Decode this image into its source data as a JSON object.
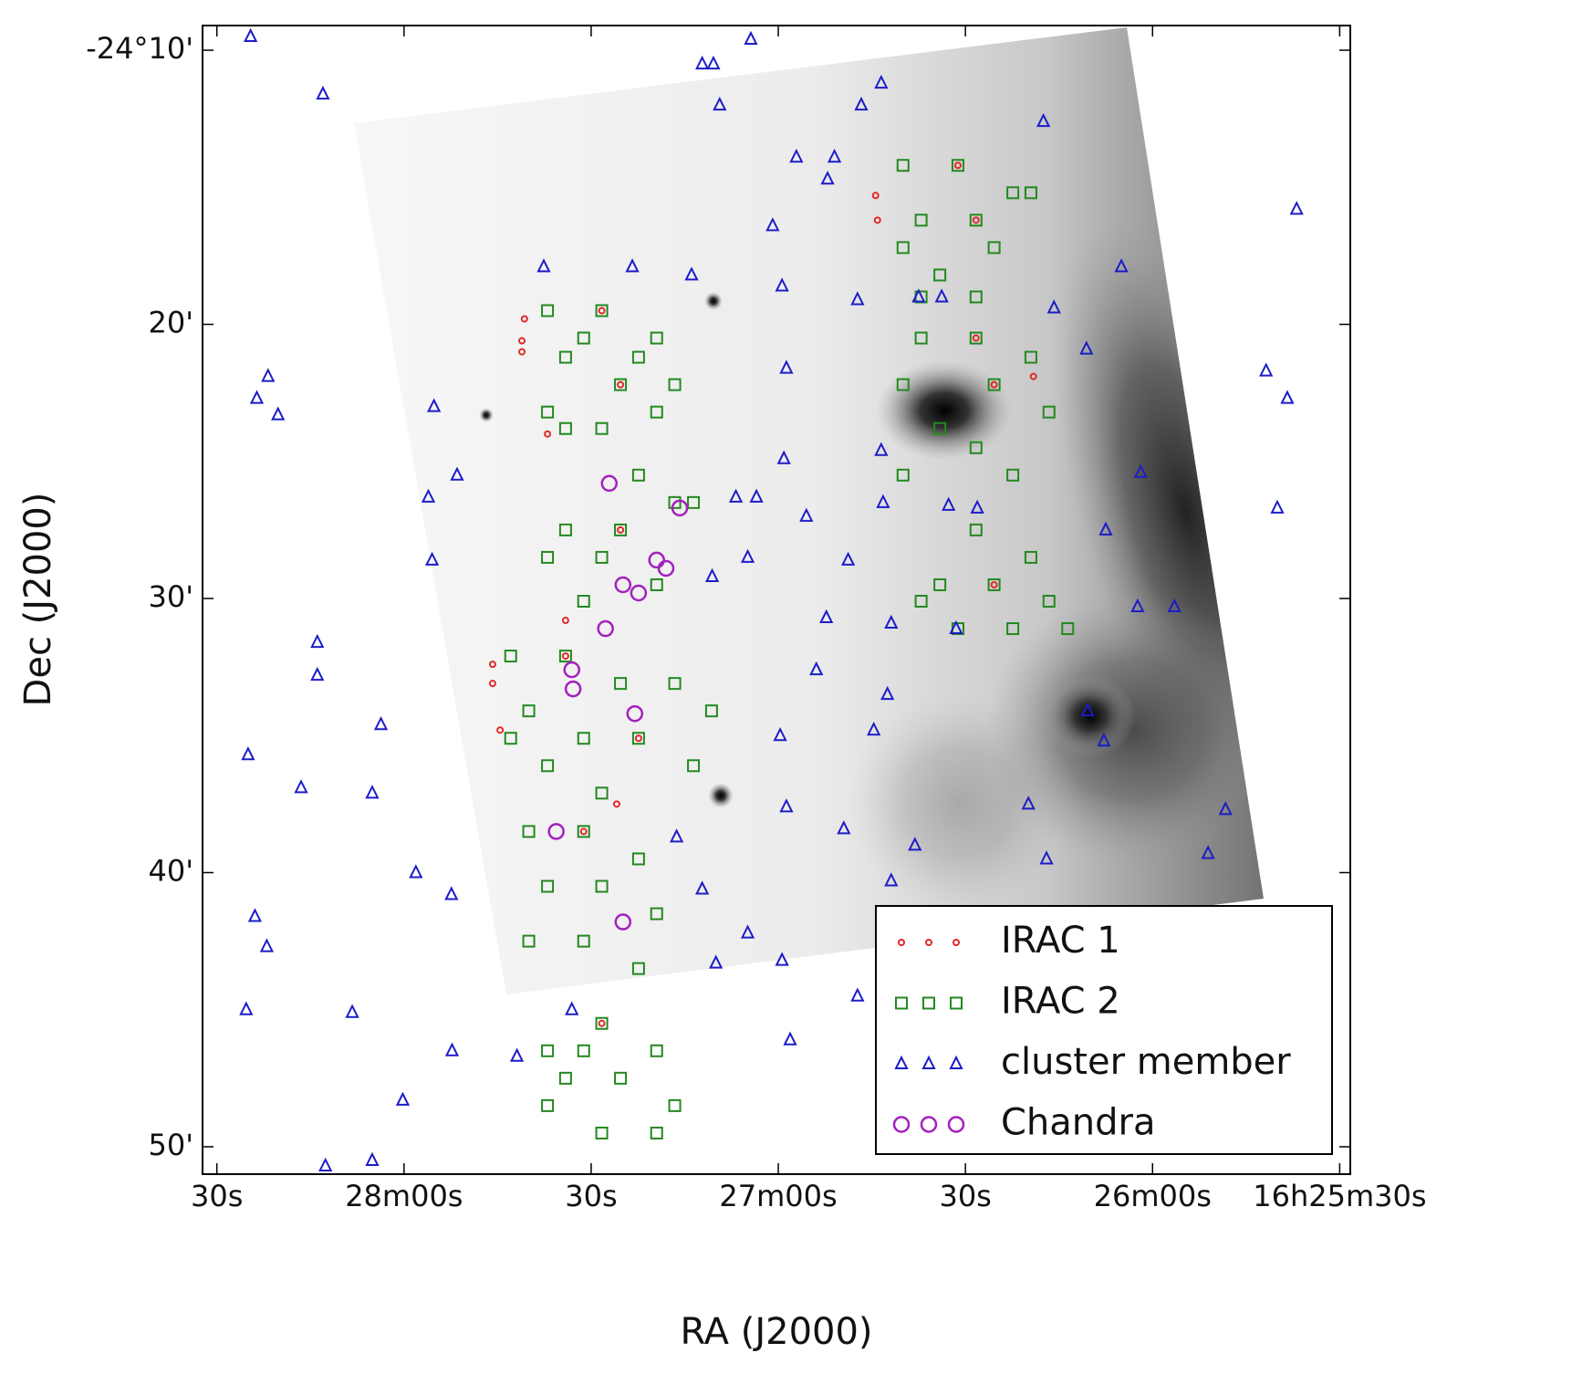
{
  "chart_data": {
    "type": "scatter",
    "xlabel": "RA (J2000)",
    "ylabel": "Dec (J2000)",
    "xlim": [
      1712.3,
      1528.3
    ],
    "ylim": [
      -1491.0,
      -1449.1
    ],
    "xticks": [
      {
        "value": 1710,
        "label": "30s"
      },
      {
        "value": 1680,
        "label": "28m00s"
      },
      {
        "value": 1650,
        "label": "30s"
      },
      {
        "value": 1620,
        "label": "27m00s"
      },
      {
        "value": 1590,
        "label": "30s"
      },
      {
        "value": 1560,
        "label": "26m00s"
      },
      {
        "value": 1530,
        "label": "16h25m30s"
      }
    ],
    "yticks": [
      {
        "value": -1450,
        "label": "-24°10'"
      },
      {
        "value": -1460,
        "label": "20'"
      },
      {
        "value": -1470,
        "label": "30'"
      },
      {
        "value": -1480,
        "label": "40'"
      },
      {
        "value": -1490,
        "label": "50'"
      }
    ],
    "grid": false,
    "legend": "lower right",
    "series": [
      {
        "name": "IRAC 1",
        "color": "#e02828",
        "marker": ".",
        "x": [
          1661.1,
          1661.1,
          1660.7,
          1604.4,
          1604.1,
          1665.8,
          1665.8,
          1664.6,
          1654.1,
          1657.0,
          1579.1,
          1645.9,
          1648.3,
          1645.3,
          1591.2,
          1588.3,
          1588.3,
          1585.4,
          1645.3,
          1585.4,
          1654.1,
          1642.4,
          1651.2,
          1648.3
        ],
        "y": [
          -1460.6,
          -1461.0,
          -1459.8,
          -1455.3,
          -1456.2,
          -1472.4,
          -1473.1,
          -1474.8,
          -1470.8,
          -1464.0,
          -1461.9,
          -1477.5,
          -1459.5,
          -1462.2,
          -1454.2,
          -1456.2,
          -1460.5,
          -1462.2,
          -1467.5,
          -1469.5,
          -1472.1,
          -1475.1,
          -1478.5,
          -1485.5
        ]
      },
      {
        "name": "IRAC 2",
        "color": "#23891f",
        "marker": "s",
        "x": [
          1657.0,
          1648.3,
          1639.5,
          1654.1,
          1645.3,
          1636.6,
          1657.0,
          1648.3,
          1639.5,
          1651.2,
          1642.4,
          1654.1,
          1600.0,
          1591.2,
          1582.4,
          1597.1,
          1588.3,
          1600.0,
          1585.4,
          1594.1,
          1597.1,
          1588.3,
          1579.5,
          1597.1,
          1588.3,
          1579.5,
          1600.0,
          1585.4,
          1576.6,
          1594.1,
          1600.0,
          1588.3,
          1582.4,
          1642.4,
          1636.6,
          1654.1,
          1645.3,
          1657.0,
          1648.3,
          1639.5,
          1651.2,
          1633.6,
          1588.3,
          1579.5,
          1594.1,
          1585.4,
          1576.6,
          1591.2,
          1582.4,
          1573.6,
          1597.1,
          1662.9,
          1654.1,
          1645.3,
          1636.6,
          1630.7,
          1660.0,
          1651.2,
          1642.4,
          1633.6,
          1657.0,
          1648.3,
          1662.9,
          1660.0,
          1651.2,
          1642.4,
          1657.0,
          1648.3,
          1639.5,
          1660.0,
          1651.2,
          1642.4,
          1657.0,
          1648.3,
          1639.5,
          1654.1,
          1645.3,
          1636.6,
          1657.0,
          1648.3,
          1639.5,
          1651.2
        ],
        "y": [
          -1459.5,
          -1459.5,
          -1460.5,
          -1461.2,
          -1462.2,
          -1462.2,
          -1463.2,
          -1463.8,
          -1463.2,
          -1460.5,
          -1461.2,
          -1463.8,
          -1454.2,
          -1454.2,
          -1455.2,
          -1456.2,
          -1456.2,
          -1457.2,
          -1457.2,
          -1458.2,
          -1459.0,
          -1459.0,
          -1455.2,
          -1460.5,
          -1460.5,
          -1461.2,
          -1462.2,
          -1462.2,
          -1463.2,
          -1463.8,
          -1465.5,
          -1464.5,
          -1465.5,
          -1465.5,
          -1466.5,
          -1467.5,
          -1467.5,
          -1468.5,
          -1468.5,
          -1469.5,
          -1470.1,
          -1466.5,
          -1467.5,
          -1468.5,
          -1469.5,
          -1469.5,
          -1470.1,
          -1471.1,
          -1471.1,
          -1471.1,
          -1470.1,
          -1472.1,
          -1472.1,
          -1473.1,
          -1473.1,
          -1474.1,
          -1474.1,
          -1475.1,
          -1475.1,
          -1476.1,
          -1476.1,
          -1477.1,
          -1475.1,
          -1478.5,
          -1478.5,
          -1479.5,
          -1480.5,
          -1480.5,
          -1481.5,
          -1482.5,
          -1482.5,
          -1483.5,
          -1486.5,
          -1485.5,
          -1486.5,
          -1487.5,
          -1487.5,
          -1488.5,
          -1488.5,
          -1489.5,
          -1489.5,
          -1486.5
        ]
      },
      {
        "name": "cluster member",
        "color": "#1c1cc8",
        "marker": "^",
        "x": [
          1704.6,
          1693.0,
          1624.4,
          1632.2,
          1630.4,
          1603.5,
          1606.7,
          1629.4,
          1577.5,
          1617.1,
          1611.0,
          1612.1,
          1620.9,
          1536.9,
          1657.6,
          1643.4,
          1633.9,
          1619.4,
          1607.3,
          1575.8,
          1565.0,
          1701.8,
          1703.6,
          1700.2,
          1675.2,
          1676.1,
          1671.5,
          1675.5,
          1693.9,
          1693.9,
          1705.0,
          1696.5,
          1685.1,
          1683.7,
          1678.1,
          1672.4,
          1703.9,
          1702.0,
          1705.3,
          1688.3,
          1672.3,
          1680.2,
          1692.6,
          1541.8,
          1538.4,
          1540.0,
          1561.9,
          1570.6,
          1548.3,
          1551.1,
          1577.0,
          1579.9,
          1598.1,
          1601.9,
          1609.5,
          1619.4,
          1618.1,
          1607.3,
          1632.2,
          1636.3,
          1624.9,
          1630.0,
          1619.7,
          1618.7,
          1604.7,
          1602.5,
          1613.9,
          1612.3,
          1601.9,
          1608.8,
          1615.5,
          1626.8,
          1623.5,
          1624.9,
          1630.6,
          1619.1,
          1588.1,
          1592.7,
          1603.5,
          1603.2,
          1591.5,
          1567.5,
          1562.4,
          1556.5,
          1567.8,
          1570.4,
          1618.7,
          1597.5,
          1593.8,
          1661.9,
          1653.1,
          1685.1
        ],
        "y": [
          -1449.5,
          -1451.6,
          -1449.6,
          -1450.5,
          -1450.5,
          -1451.2,
          -1452.0,
          -1452.0,
          -1452.6,
          -1453.9,
          -1453.9,
          -1454.7,
          -1456.4,
          -1455.8,
          -1457.9,
          -1457.9,
          -1458.2,
          -1458.6,
          -1459.1,
          -1459.4,
          -1457.9,
          -1461.9,
          -1462.7,
          -1463.3,
          -1463.0,
          -1466.3,
          -1465.5,
          -1468.6,
          -1471.6,
          -1472.8,
          -1475.7,
          -1476.9,
          -1477.1,
          -1474.6,
          -1480.0,
          -1480.8,
          -1481.6,
          -1482.7,
          -1485.0,
          -1485.1,
          -1486.5,
          -1488.3,
          -1490.7,
          -1461.7,
          -1462.7,
          -1466.7,
          -1465.4,
          -1460.9,
          -1477.7,
          -1479.3,
          -1479.5,
          -1477.5,
          -1479.0,
          -1480.3,
          -1478.4,
          -1483.2,
          -1486.1,
          -1484.5,
          -1480.6,
          -1478.7,
          -1482.2,
          -1483.3,
          -1475.0,
          -1477.6,
          -1474.8,
          -1473.5,
          -1472.6,
          -1470.7,
          -1470.9,
          -1468.6,
          -1467.0,
          -1466.3,
          -1466.3,
          -1468.5,
          -1469.2,
          -1464.9,
          -1466.7,
          -1466.6,
          -1464.6,
          -1466.5,
          -1471.1,
          -1467.5,
          -1470.3,
          -1470.3,
          -1475.2,
          -1474.1,
          -1461.6,
          -1459.0,
          -1459.0,
          -1486.7,
          -1485.0,
          -1490.5
        ]
      },
      {
        "name": "Chandra",
        "color": "#a321bd",
        "marker": "o",
        "x": [
          1647.1,
          1635.8,
          1639.5,
          1638.0,
          1644.9,
          1642.4,
          1647.7,
          1653.1,
          1652.9,
          1643.0,
          1655.6,
          1644.9
        ],
        "y": [
          -1465.8,
          -1466.7,
          -1468.6,
          -1468.9,
          -1469.5,
          -1469.8,
          -1471.1,
          -1472.6,
          -1473.3,
          -1474.2,
          -1478.5,
          -1481.8
        ]
      }
    ]
  }
}
